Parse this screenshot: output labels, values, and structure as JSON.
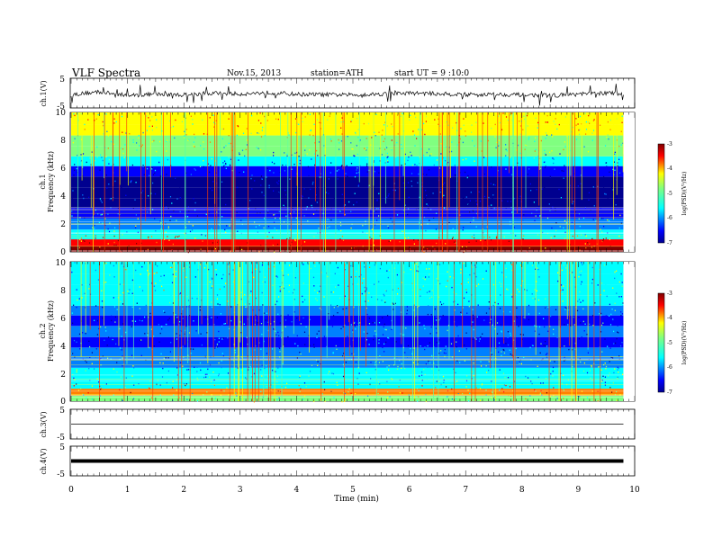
{
  "header": {
    "title": "VLF  Spectra",
    "date": "Nov.15, 2013",
    "station": "station=ATH",
    "start": "start  UT  =   9  :10:0"
  },
  "chart_data": [
    {
      "type": "line",
      "name": "ch1-waveform",
      "ylabel": "ch.1(V)",
      "ylim": [
        -5,
        5
      ],
      "yticks": [
        "5",
        "-5"
      ],
      "x": [
        0,
        0.5,
        1,
        1.5,
        2,
        2.5,
        3,
        3.5,
        4,
        4.5,
        5,
        5.5,
        6,
        6.5,
        7,
        7.5,
        8,
        8.5,
        9,
        9.5,
        9.8
      ],
      "values": [
        -0.5,
        0.4,
        -0.8,
        -0.4,
        -0.6,
        0.0,
        -0.3,
        0.2,
        -0.4,
        -0.5,
        -0.6,
        -0.3,
        0.0,
        -0.2,
        -0.5,
        -0.4,
        -0.6,
        -0.8,
        -0.4,
        0.0,
        -0.2
      ]
    },
    {
      "type": "heatmap",
      "name": "ch1-spectrogram",
      "ylabel": "ch.1",
      "ylabel2": "Frequency  (kHz)",
      "ylim": [
        0,
        10
      ],
      "yticks": [
        "0",
        "2",
        "4",
        "6",
        "8",
        "10"
      ],
      "colorbar": {
        "label": "log(PSD)(V²/Hz)",
        "range": [
          -7,
          -3
        ],
        "ticks": [
          "-3",
          "-4",
          "-5",
          "-6",
          "-7"
        ]
      },
      "band_freq_khz": [
        0.2,
        0.6,
        1.2,
        2.0,
        2.8,
        3.5,
        4.2,
        5.0,
        5.8,
        6.5,
        7.2,
        8.0,
        8.7,
        9.5
      ],
      "band_log_psd": [
        -3.2,
        -3.6,
        -5.6,
        -5.8,
        -6.7,
        -6.8,
        -6.9,
        -6.8,
        -6.4,
        -5.6,
        -5.1,
        -4.8,
        -4.5,
        -4.5
      ]
    },
    {
      "type": "heatmap",
      "name": "ch2-spectrogram",
      "ylabel": "ch.2",
      "ylabel2": "Frequency  (kHz)",
      "ylim": [
        0,
        10
      ],
      "yticks": [
        "0",
        "2",
        "4",
        "6",
        "8",
        "10"
      ],
      "colorbar": {
        "label": "log(PSD)(V²/Hz)",
        "range": [
          -7,
          -3
        ],
        "ticks": [
          "-3",
          "-4",
          "-5",
          "-6",
          "-7"
        ]
      },
      "band_freq_khz": [
        0.2,
        0.6,
        1.2,
        2.0,
        2.8,
        3.5,
        4.2,
        5.0,
        5.8,
        6.5,
        7.2,
        8.0,
        8.7,
        9.5
      ],
      "band_log_psd": [
        -5.0,
        -4.2,
        -5.6,
        -5.5,
        -6.0,
        -6.1,
        -6.4,
        -6.0,
        -6.6,
        -6.0,
        -5.5,
        -5.3,
        -5.4,
        -5.3
      ]
    },
    {
      "type": "line",
      "name": "ch3-waveform",
      "ylabel": "ch.3(V)",
      "ylim": [
        -5,
        5
      ],
      "yticks": [
        "5",
        "-5"
      ],
      "x": [
        0,
        9.8
      ],
      "values": [
        0,
        0
      ]
    },
    {
      "type": "line",
      "name": "ch4-waveform",
      "ylabel": "ch.4(V)",
      "ylim": [
        -5,
        5
      ],
      "yticks": [
        "5",
        "-5"
      ],
      "x": [
        0,
        9.8
      ],
      "values": [
        0,
        0
      ]
    }
  ],
  "xaxis": {
    "label": "Time  (min)",
    "range": [
      0,
      10
    ],
    "ticks": [
      "0",
      "1",
      "2",
      "3",
      "4",
      "5",
      "6",
      "7",
      "8",
      "9",
      "10"
    ]
  },
  "colors": {
    "jet": [
      "#00008f",
      "#0000ff",
      "#0080ff",
      "#00ffff",
      "#80ff80",
      "#ffff00",
      "#ff8000",
      "#ff0000",
      "#800000"
    ]
  }
}
